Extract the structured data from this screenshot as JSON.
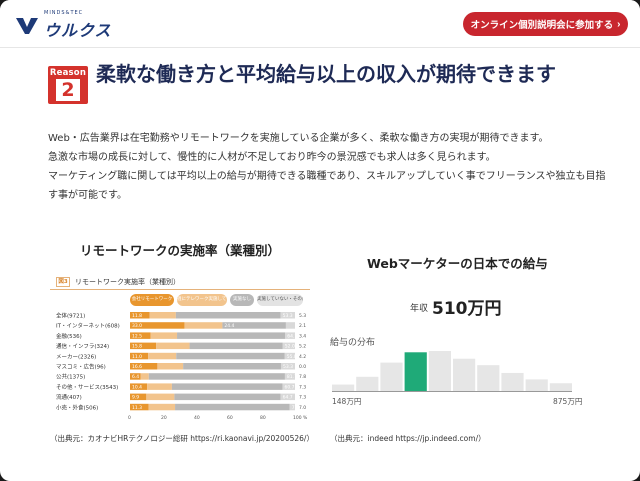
{
  "header": {
    "logo_tagline": "MINDS&TEC",
    "logo_name": "ウルクス",
    "cta_label": "オンライン個別説明会に参加する"
  },
  "reason": {
    "label": "Reason",
    "number": "2"
  },
  "title": "柔軟な働き方と平均給与以上の収入が期待できます",
  "paragraphs": [
    "Web・広告業界は在宅勤務やリモートワークを実施している企業が多く、柔軟な働き方の実現が期待できます。",
    "急激な市場の成長に対して、慢性的に人材が不足しており昨今の景況感でも求人は多く見られます。",
    "マーケティング職に関しては平均以上の給与が期待できる職種であり、スキルアップしていく事でフリーランスや独立も目指す事が可能です。"
  ],
  "left_chart": {
    "heading": "リモートワークの実施率（業種別）",
    "source": "（出典元：カオナビHRテクノロジー総研 https://ri.kaonavi.jp/20200526/）",
    "figure_badge": "図3",
    "figure_title": "リモートワーク実施率（業種別）",
    "legend": [
      "会社リモートワーク",
      "週にテレワーク実施しているが所属リモートワーク",
      "実施なし",
      "実施していない・その他"
    ]
  },
  "right_chart": {
    "heading": "Webマーケターの日本での給与",
    "salary_prefix": "年収",
    "salary_value": "510万円",
    "dist_label": "給与の分布",
    "dist_min": "148万円",
    "dist_max": "875万円",
    "source": "（出典元：indeed https://jp.indeed.com/）"
  },
  "colors": {
    "brand_navy": "#1e3a78",
    "cta_red": "#c8262e",
    "reason_red": "#d4322c",
    "bar_orange": "#e8962e",
    "bar_light_orange": "#f2c48d",
    "bar_gray": "#b8b8b8",
    "bar_light_gray": "#d9d9d9",
    "dist_highlight": "#1faa78",
    "dist_bar": "#e6e6e6"
  },
  "chart_data": [
    {
      "type": "bar",
      "orientation": "horizontal",
      "stacked": true,
      "title": "リモートワーク実施率（業種別）",
      "categories": [
        "全体(9721)",
        "IT・インターネット(608)",
        "金融(536)",
        "通信・インフラ(324)",
        "メーカー(2326)",
        "マスコミ・広告(96)",
        "公共(1375)",
        "その他・サービス(3543)",
        "流通(407)",
        "小売・外食(506)"
      ],
      "series": [
        {
          "name": "会社リモートワーク",
          "values": [
            11.8,
            33.0,
            12.5,
            15.8,
            11.0,
            16.6,
            6.4,
            10.4,
            9.9,
            11.3
          ]
        },
        {
          "name": "週にテレワーク実施しているが所属リモートワーク",
          "values": [
            16.0,
            23.0,
            16.0,
            20.3,
            17.0,
            15.6,
            5.0,
            15.0,
            17.0,
            16.0
          ]
        },
        {
          "name": "実施なし",
          "values": [
            63.5,
            38.5,
            65.6,
            56.5,
            65.8,
            59.3,
            82.5,
            67.0,
            64.4,
            69.5
          ]
        },
        {
          "name": "実施していない・その他",
          "values": [
            8.7,
            5.5,
            5.9,
            7.4,
            6.2,
            8.5,
            6.1,
            7.6,
            8.7,
            3.2
          ]
        }
      ],
      "bar_labels": [
        [
          "11.8",
          "",
          "",
          "53.3"
        ],
        [
          "33.0",
          "",
          "24.4",
          ""
        ],
        [
          "12.5",
          "",
          "",
          "64.1"
        ],
        [
          "15.8",
          "",
          "",
          "52.0"
        ],
        [
          "11.0",
          "",
          "",
          "55.8"
        ],
        [
          "16.6",
          "",
          "",
          "53.3"
        ],
        [
          "6.4",
          "",
          "",
          "81.7"
        ],
        [
          "10.4",
          "",
          "",
          "60.7"
        ],
        [
          "9.9",
          "",
          "",
          "64.7"
        ],
        [
          "11.3",
          "",
          "",
          "71.6"
        ]
      ],
      "right_values": [
        "5.3",
        "2.1",
        "3.4",
        "5.2",
        "4.2",
        "0.0",
        "7.8",
        "7.3",
        "7.3",
        "7.0"
      ],
      "x_ticks": [
        "0",
        "20",
        "40",
        "60",
        "80",
        "100",
        "%"
      ],
      "xlim": [
        0,
        100
      ]
    },
    {
      "type": "bar",
      "title": "給与の分布",
      "values": [
        10,
        22,
        44,
        60,
        62,
        50,
        40,
        28,
        18,
        12
      ],
      "highlight_index": 3,
      "xlabel_min": "148万円",
      "xlabel_max": "875万円"
    }
  ]
}
